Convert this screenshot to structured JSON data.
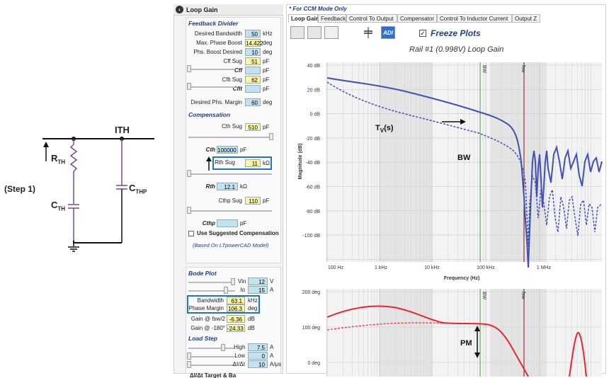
{
  "schematic": {
    "step_label": "(Step 1)",
    "node_label": "ITH",
    "r_label": "R",
    "r_sub": "TH",
    "c_label": "C",
    "c_sub": "TH",
    "cp_label": "C",
    "cp_sub": "THP"
  },
  "panel": {
    "title": "Loop Gain",
    "feedback": {
      "title": "Feedback Divider",
      "rows": [
        {
          "label": "Desired Bandwidth",
          "value": "50",
          "unit": "kHz",
          "kind": "blue"
        },
        {
          "label": "Max. Phase Boost",
          "value": "14.422",
          "unit": "deg",
          "kind": "yellow"
        },
        {
          "label": "Phs. Boost Desired",
          "value": "10",
          "unit": "deg",
          "kind": "blue"
        },
        {
          "label": "Cff Sug",
          "value": "51",
          "unit": "pF",
          "kind": "yellow"
        },
        {
          "label": "Cff",
          "value": "",
          "unit": "pF",
          "kind": "blue",
          "italic": true
        },
        {
          "label": "Cflt Sug",
          "value": "62",
          "unit": "pF",
          "kind": "yellow"
        },
        {
          "label": "Cflt",
          "value": "",
          "unit": "pF",
          "kind": "blue",
          "italic": true
        },
        {
          "label": "Desired Phs. Margin",
          "value": "60",
          "unit": "deg",
          "kind": "blue"
        }
      ]
    },
    "compensation": {
      "title": "Compensation",
      "cth_sug_label": "Cth Sug",
      "cth_sug_value": "510",
      "cth_sug_unit": "pF",
      "cth_label": "Cth",
      "cth_value": "100000",
      "cth_unit": "pF",
      "rth_sug_label": "Rth Sug",
      "rth_sug_value": "11",
      "rth_sug_unit": "kΩ",
      "rth_label": "Rth",
      "rth_value": "12.1",
      "rth_unit": "kΩ",
      "cthp_sug_label": "Cthp Sug",
      "cthp_sug_value": "110",
      "cthp_sug_unit": "pF",
      "cthp_label": "Cthp",
      "cthp_value": "",
      "cthp_unit": "pF",
      "use_suggested_label": "Use Suggested Compensation",
      "use_suggested_checked": false,
      "based_on": "(Based On LTpowerCAD Model)"
    },
    "bode": {
      "title": "Bode Plot",
      "vin_label": "Vin",
      "vin_value": "12",
      "vin_unit": "V",
      "io_label": "Io",
      "io_value": "15",
      "io_unit": "A",
      "bw_label": "Bandwidth",
      "bw_value": "63.1",
      "bw_unit": "kHz",
      "pm_label": "Phase Margin",
      "pm_value": "106.3",
      "pm_unit": "deg",
      "gfsw_label": "Gain @ fsw/2",
      "gfsw_value": "-6.36",
      "gfsw_unit": "dB",
      "g180_label": "Gain @ -180°",
      "g180_value": "-24.33",
      "g180_unit": "dB"
    },
    "load_step": {
      "title": "Load Step",
      "high_label": "High",
      "high_value": "7.5",
      "high_unit": "A",
      "low_label": "Low",
      "low_value": "0",
      "low_unit": "A",
      "didt_label": "ΔI/Δt",
      "didt_value": "10",
      "didt_unit": "A/μs",
      "cut_label": "ΔI/Δt Target & Ba"
    }
  },
  "plots": {
    "ccm_note": "* For CCM Mode Only",
    "tabs": [
      "Loop Gain",
      "Feedback",
      "Control To Output",
      "Compensator",
      "Control To Inductor Current",
      "Output Z"
    ],
    "active_tab": 0,
    "freeze_label": "Freeze Plots",
    "freeze_checked": true,
    "adi_label": "ADI",
    "gain_title": "Rail #1 (0.998V) Loop Gain",
    "gain_ylabel": "Magnitude (dB)",
    "gain_yticks": [
      "40 dB",
      "20 dB",
      "0 dB",
      "-20 dB",
      "-40 dB",
      "-60 dB",
      "-80 dB",
      "-100 dB"
    ],
    "gain_xticks": [
      "100 Hz",
      "1 kHz",
      "10 kHz",
      "100 kHz",
      "1 MHz"
    ],
    "xlabel": "Frequency (Hz)",
    "bw_marker": "BW",
    "fsw_marker": "fsw",
    "annot_tv": "T",
    "annot_tv_sub": "V",
    "annot_tv_tail": "(s)",
    "annot_bw": "BW",
    "phase_yticks": [
      "200 deg",
      "100 deg",
      "0 deg"
    ],
    "annot_pm": "PM"
  },
  "colors": {
    "gain_line": "#3f51b5",
    "phase_line": "#e8262b",
    "bw_line": "#4caf50",
    "fsw_line": "#8b1a1a",
    "section_title": "#1f3f86",
    "highlight": "#1f78b4"
  }
}
